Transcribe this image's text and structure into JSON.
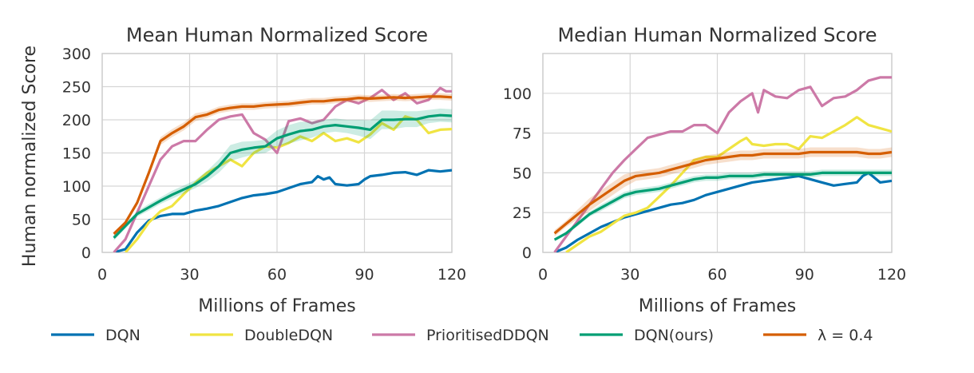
{
  "colors": {
    "DQN": "#0072b2",
    "DoubleDQN": "#f0e442",
    "PrioritisedDDQN": "#cc79a7",
    "DQN(ours)": "#009e73",
    "lambda": "#d55e00"
  },
  "chart_data": [
    {
      "type": "line",
      "title": "Mean Human Normalized Score",
      "xlabel": "Millions of Frames",
      "ylabel": "Human normalized Score",
      "xlim": [
        0,
        120
      ],
      "ylim": [
        0,
        300
      ],
      "xticks": [
        0,
        30,
        60,
        90,
        120
      ],
      "yticks": [
        0,
        50,
        100,
        150,
        200,
        250,
        300
      ],
      "grid": true,
      "series": [
        {
          "key": "DQN",
          "name": "DQN",
          "color": "#0072b2",
          "x": [
            4,
            8,
            12,
            16,
            20,
            24,
            28,
            32,
            36,
            40,
            44,
            48,
            52,
            56,
            60,
            64,
            68,
            72,
            74,
            76,
            78,
            80,
            84,
            88,
            90,
            92,
            96,
            100,
            104,
            108,
            112,
            116,
            120
          ],
          "y": [
            0,
            5,
            30,
            48,
            55,
            58,
            58,
            63,
            66,
            70,
            76,
            82,
            86,
            88,
            91,
            97,
            103,
            106,
            115,
            110,
            113,
            103,
            101,
            103,
            110,
            115,
            117,
            120,
            121,
            117,
            124,
            122,
            124
          ]
        },
        {
          "key": "DoubleDQN",
          "name": "DoubleDQN",
          "color": "#f0e442",
          "x": [
            8,
            12,
            16,
            20,
            24,
            28,
            32,
            36,
            40,
            44,
            48,
            52,
            56,
            60,
            64,
            68,
            72,
            76,
            80,
            84,
            88,
            92,
            96,
            100,
            104,
            108,
            112,
            116,
            120
          ],
          "y": [
            0,
            20,
            45,
            62,
            70,
            88,
            105,
            120,
            130,
            140,
            130,
            150,
            160,
            158,
            165,
            175,
            168,
            180,
            168,
            172,
            166,
            178,
            195,
            185,
            205,
            200,
            180,
            185,
            186
          ]
        },
        {
          "key": "PrioritisedDDQN",
          "name": "PrioritisedDDQN",
          "color": "#cc79a7",
          "x": [
            4,
            8,
            12,
            16,
            20,
            22,
            24,
            28,
            32,
            36,
            40,
            44,
            48,
            52,
            56,
            60,
            64,
            68,
            72,
            76,
            80,
            84,
            88,
            92,
            96,
            100,
            104,
            108,
            112,
            116,
            118,
            120
          ],
          "y": [
            0,
            20,
            60,
            100,
            140,
            150,
            160,
            168,
            168,
            185,
            200,
            205,
            208,
            180,
            170,
            150,
            198,
            202,
            195,
            200,
            220,
            230,
            225,
            233,
            245,
            230,
            240,
            225,
            230,
            248,
            243,
            243
          ]
        },
        {
          "key": "DQN(ours)",
          "name": "DQN(ours)",
          "color": "#009e73",
          "x": [
            4,
            8,
            12,
            16,
            20,
            24,
            28,
            32,
            36,
            40,
            44,
            48,
            52,
            56,
            60,
            64,
            68,
            72,
            76,
            80,
            84,
            88,
            92,
            96,
            100,
            104,
            108,
            112,
            116,
            120
          ],
          "y": [
            22,
            40,
            58,
            68,
            78,
            87,
            95,
            103,
            115,
            130,
            150,
            155,
            158,
            160,
            172,
            178,
            183,
            185,
            190,
            192,
            190,
            188,
            185,
            200,
            200,
            201,
            201,
            205,
            207,
            206
          ],
          "band": [
            4,
            4,
            4,
            5,
            5,
            6,
            6,
            6,
            8,
            10,
            12,
            12,
            10,
            10,
            12,
            14,
            14,
            12,
            10,
            10,
            10,
            12,
            14,
            14,
            14,
            12,
            12,
            10,
            10,
            10
          ]
        },
        {
          "key": "lambda",
          "name": "λ = 0.4",
          "color": "#d55e00",
          "x": [
            4,
            8,
            12,
            16,
            20,
            24,
            28,
            32,
            36,
            40,
            44,
            48,
            52,
            56,
            60,
            64,
            68,
            72,
            76,
            80,
            84,
            88,
            92,
            96,
            100,
            104,
            108,
            112,
            116,
            120
          ],
          "y": [
            28,
            45,
            75,
            120,
            168,
            180,
            190,
            204,
            208,
            215,
            218,
            220,
            220,
            222,
            223,
            224,
            226,
            228,
            228,
            230,
            231,
            233,
            232,
            233,
            234,
            233,
            234,
            235,
            235,
            234
          ],
          "band": [
            3,
            3,
            4,
            5,
            6,
            6,
            6,
            6,
            5,
            5,
            5,
            5,
            5,
            5,
            5,
            5,
            5,
            5,
            5,
            5,
            5,
            5,
            5,
            5,
            5,
            5,
            5,
            5,
            5,
            5
          ]
        }
      ]
    },
    {
      "type": "line",
      "title": "Median Human Normalized Score",
      "xlabel": "Millions of Frames",
      "ylabel": "",
      "xlim": [
        0,
        120
      ],
      "ylim": [
        0,
        125
      ],
      "xticks": [
        0,
        30,
        60,
        90,
        120
      ],
      "yticks": [
        0,
        25,
        50,
        75,
        100
      ],
      "grid": true,
      "series": [
        {
          "key": "DQN",
          "name": "DQN",
          "color": "#0072b2",
          "x": [
            4,
            8,
            12,
            16,
            20,
            24,
            28,
            32,
            36,
            40,
            44,
            48,
            52,
            56,
            60,
            64,
            68,
            72,
            76,
            80,
            84,
            88,
            92,
            96,
            100,
            104,
            108,
            110,
            112,
            116,
            120
          ],
          "y": [
            0,
            3,
            8,
            12,
            16,
            19,
            22,
            24,
            26,
            28,
            30,
            31,
            33,
            36,
            38,
            40,
            42,
            44,
            45,
            46,
            47,
            48,
            46,
            44,
            42,
            43,
            44,
            48,
            50,
            44,
            45
          ]
        },
        {
          "key": "DoubleDQN",
          "name": "DoubleDQN",
          "color": "#f0e442",
          "x": [
            8,
            12,
            16,
            20,
            24,
            28,
            32,
            36,
            40,
            44,
            48,
            52,
            56,
            60,
            64,
            68,
            70,
            72,
            76,
            80,
            84,
            88,
            92,
            96,
            100,
            104,
            108,
            112,
            116,
            120
          ],
          "y": [
            0,
            5,
            10,
            13,
            18,
            23,
            25,
            28,
            35,
            42,
            50,
            58,
            60,
            60,
            65,
            70,
            72,
            68,
            67,
            68,
            68,
            65,
            73,
            72,
            76,
            80,
            85,
            80,
            78,
            76
          ]
        },
        {
          "key": "PrioritisedDDQN",
          "name": "PrioritisedDDQN",
          "color": "#cc79a7",
          "x": [
            4,
            8,
            12,
            16,
            20,
            24,
            28,
            32,
            36,
            40,
            44,
            48,
            52,
            56,
            60,
            64,
            68,
            72,
            74,
            76,
            80,
            84,
            88,
            92,
            96,
            100,
            104,
            108,
            112,
            116,
            120
          ],
          "y": [
            0,
            10,
            20,
            30,
            40,
            50,
            58,
            65,
            72,
            74,
            76,
            76,
            80,
            80,
            75,
            88,
            95,
            100,
            88,
            102,
            98,
            97,
            102,
            104,
            92,
            97,
            98,
            102,
            108,
            110,
            110
          ]
        },
        {
          "key": "DQN(ours)",
          "name": "DQN(ours)",
          "color": "#009e73",
          "x": [
            4,
            8,
            12,
            16,
            20,
            24,
            28,
            32,
            36,
            40,
            44,
            48,
            52,
            56,
            60,
            64,
            68,
            72,
            76,
            80,
            84,
            88,
            92,
            96,
            100,
            104,
            108,
            112,
            116,
            120
          ],
          "y": [
            8,
            12,
            18,
            24,
            28,
            32,
            36,
            38,
            39,
            40,
            42,
            44,
            46,
            47,
            47,
            48,
            48,
            48,
            49,
            49,
            49,
            49,
            49,
            50,
            50,
            50,
            50,
            50,
            50,
            50
          ],
          "band": [
            1,
            1,
            1.5,
            1.5,
            2,
            2,
            2,
            2,
            2,
            2,
            2,
            2,
            2,
            2,
            2,
            2,
            2,
            2,
            2,
            2,
            2,
            2,
            2,
            2,
            2,
            2,
            2,
            2,
            2,
            2
          ]
        },
        {
          "key": "lambda",
          "name": "λ = 0.4",
          "color": "#d55e00",
          "x": [
            4,
            8,
            12,
            16,
            20,
            24,
            28,
            32,
            36,
            40,
            44,
            48,
            52,
            56,
            60,
            64,
            68,
            72,
            76,
            80,
            84,
            88,
            92,
            96,
            100,
            104,
            108,
            112,
            116,
            120
          ],
          "y": [
            12,
            18,
            24,
            30,
            35,
            40,
            45,
            48,
            49,
            50,
            52,
            54,
            56,
            58,
            59,
            60,
            61,
            61,
            62,
            62,
            62,
            62,
            63,
            63,
            63,
            63,
            63,
            62,
            62,
            63
          ],
          "band": [
            2,
            2,
            3,
            4,
            4,
            4,
            4,
            3,
            3,
            3,
            3,
            3,
            3,
            3,
            3,
            3,
            3,
            3,
            3,
            3,
            3,
            3,
            3,
            3,
            3,
            3,
            3,
            3,
            3,
            3
          ]
        }
      ]
    }
  ],
  "legend": {
    "placement": "bottom",
    "entries": [
      {
        "key": "DQN",
        "label": "DQN"
      },
      {
        "key": "DoubleDQN",
        "label": "DoubleDQN"
      },
      {
        "key": "PrioritisedDDQN",
        "label": "PrioritisedDDQN"
      },
      {
        "key": "DQN(ours)",
        "label": "DQN(ours)"
      },
      {
        "key": "lambda",
        "label": "λ = 0.4"
      }
    ]
  }
}
